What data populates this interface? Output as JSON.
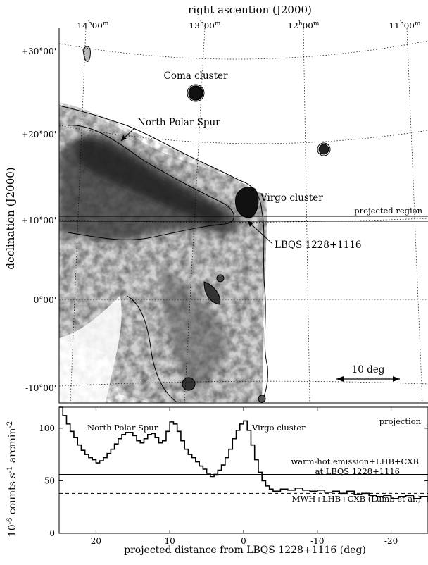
{
  "sky_map": {
    "top_axis_label": "right ascention (J2000)",
    "ra_ticks": [
      {
        "label": "14h00m",
        "h": "14",
        "m": "00"
      },
      {
        "label": "13h00m",
        "h": "13",
        "m": "00"
      },
      {
        "label": "12h00m",
        "h": "12",
        "m": "00"
      },
      {
        "label": "11h00m",
        "h": "11",
        "m": "00"
      }
    ],
    "left_axis_label": "declination (J2000)",
    "dec_ticks": [
      "+30°00'",
      "+20°00'",
      "+10°00'",
      "0°00'",
      "-10°00'"
    ],
    "annotations": {
      "coma": "Coma cluster",
      "nps": "North Polar Spur",
      "virgo": "Virgo cluster",
      "projected_region": "projected region",
      "lbqs": "LBQS 1228+1116",
      "scale_bar": "10 deg"
    }
  },
  "chart_data": {
    "type": "line",
    "title": "projection",
    "xlabel": "projected distance from LBQS 1228+1116 (deg)",
    "ylabel": "10^-6 counts s^-1 arcmin^-2",
    "ylabel_parts": {
      "base": "10",
      "exp1": "-6",
      "mid": " counts s",
      "exp2": "-1",
      "mid2": " arcmin",
      "exp3": "-2"
    },
    "x_ticks": [
      20,
      10,
      0,
      -10,
      -20
    ],
    "y_ticks": [
      0,
      50,
      100
    ],
    "xlim": [
      25,
      -25
    ],
    "ylim": [
      0,
      120
    ],
    "annotations": {
      "nps": "North Polar Spur",
      "virgo": "Virgo cluster",
      "whim_line1": "warm-hot emission+LHB+CXB",
      "whim_line2": "at LBQS 1228+1116",
      "mwh": "MWH+LHB+CXB (Lumb et al.)"
    },
    "series": [
      {
        "style": "step",
        "x": [
          25,
          24.5,
          24,
          23.5,
          23,
          22.5,
          22,
          21.5,
          21,
          20.5,
          20,
          19.5,
          19,
          18.5,
          18,
          17.5,
          17,
          16.5,
          16,
          15.5,
          15,
          14.5,
          14,
          13.5,
          13,
          12.5,
          12,
          11.5,
          11,
          10.5,
          10,
          9.5,
          9,
          8.5,
          8,
          7.5,
          7,
          6.5,
          6,
          5.5,
          5,
          4.5,
          4,
          3.5,
          3,
          2.5,
          2,
          1.5,
          1,
          0.5,
          0,
          -0.5,
          -1,
          -1.5,
          -2,
          -2.5,
          -3,
          -3.5,
          -4,
          -5,
          -6,
          -7,
          -8,
          -9,
          -10,
          -11,
          -12,
          -13,
          -14,
          -15,
          -16,
          -17,
          -18,
          -19,
          -20,
          -21,
          -22,
          -23,
          -24,
          -25
        ],
        "values": [
          120,
          112,
          104,
          97,
          91,
          84,
          79,
          75,
          72,
          70,
          67,
          69,
          72,
          76,
          80,
          85,
          90,
          94,
          96,
          96,
          93,
          88,
          86,
          90,
          94,
          95,
          91,
          86,
          88,
          97,
          106,
          104,
          97,
          88,
          80,
          75,
          72,
          68,
          64,
          61,
          57,
          54,
          56,
          60,
          65,
          72,
          80,
          90,
          98,
          104,
          107,
          98,
          84,
          70,
          58,
          50,
          45,
          42,
          40,
          42,
          41,
          43,
          41,
          40,
          41,
          39,
          40,
          38,
          40,
          37,
          38,
          36,
          35,
          36,
          33,
          35,
          36,
          33,
          35,
          30
        ]
      }
    ],
    "reference_lines": [
      {
        "y": 56,
        "style": "solid"
      },
      {
        "y": 38,
        "style": "dashed"
      }
    ]
  }
}
